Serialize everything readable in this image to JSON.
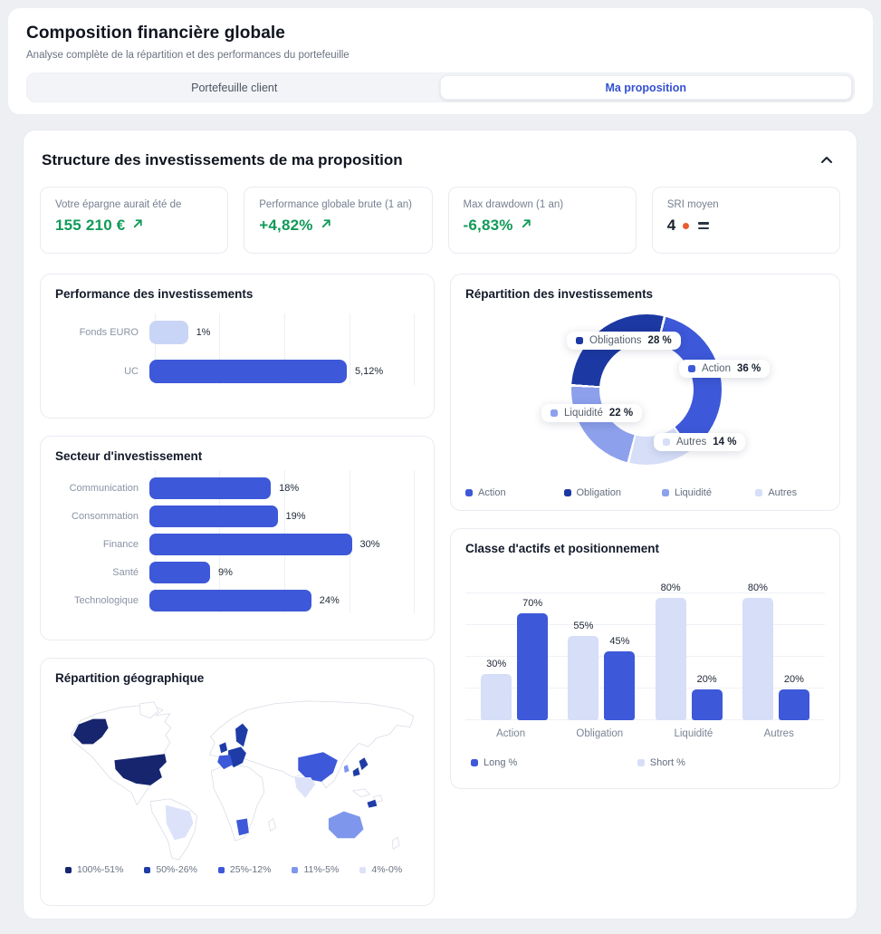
{
  "header": {
    "title": "Composition financière globale",
    "subtitle": "Analyse complète de la répartition et des performances du portefeuille"
  },
  "tabs": [
    {
      "label": "Portefeuille client",
      "active": false
    },
    {
      "label": "Ma proposition",
      "active": true
    }
  ],
  "section": {
    "title": "Structure des investissements de ma proposition"
  },
  "kpis": [
    {
      "label": "Votre épargne aurait été de",
      "value": "155 210 €",
      "trend": "up"
    },
    {
      "label": "Performance globale brute (1 an)",
      "value": "+4,82%",
      "trend": "up"
    },
    {
      "label": "Max drawdown (1 an)",
      "value": "-6,83%",
      "trend": "up"
    },
    {
      "label": "SRI moyen",
      "value": "4",
      "indicator": "dot-equals"
    }
  ],
  "palette": {
    "green": "#119A58",
    "orange": "#E85C2F",
    "action": "#3D58D8",
    "obligation": "#1C38A2",
    "liquidite": "#8CA0EC",
    "autres": "#D6DEF8",
    "map": {
      "r1": "#16256E",
      "r2": "#1F3CA6",
      "r3": "#3D58D8",
      "r4": "#7E97EC",
      "r5": "#DCE2F9"
    }
  },
  "chart_data": [
    {
      "id": "performance",
      "type": "bar",
      "orientation": "horizontal",
      "title": "Performance des investissements",
      "categories": [
        "Fonds EURO",
        "UC"
      ],
      "values": [
        1,
        5.12
      ],
      "value_labels": [
        "1%",
        "5,12%"
      ],
      "xmax": 7,
      "grid": "vertical",
      "colors": [
        "#C9D5F6",
        "#3D58D8"
      ]
    },
    {
      "id": "repartition",
      "type": "pie",
      "title": "Répartition des investissements",
      "start_angle": 15,
      "segments": [
        {
          "label": "Action",
          "value": 36,
          "display": "36 %",
          "color": "#3D58D8"
        },
        {
          "label": "Autres",
          "value": 14,
          "display": "14 %",
          "color": "#D6DEF8"
        },
        {
          "label": "Liquidité",
          "value": 22,
          "display": "22 %",
          "color": "#8CA0EC"
        },
        {
          "label": "Obligations",
          "value": 28,
          "display": "28 %",
          "color": "#1C38A2"
        }
      ],
      "legend": [
        {
          "label": "Action",
          "color": "#3D58D8"
        },
        {
          "label": "Obligation",
          "color": "#1C38A2"
        },
        {
          "label": "Liquidité",
          "color": "#8CA0EC"
        },
        {
          "label": "Autres",
          "color": "#D6DEF8"
        }
      ]
    },
    {
      "id": "secteur",
      "type": "bar",
      "orientation": "horizontal",
      "title": "Secteur d'investissement",
      "categories": [
        "Communication",
        "Consommation",
        "Finance",
        "Santé",
        "Technologique"
      ],
      "values": [
        18,
        19,
        30,
        9,
        24
      ],
      "value_labels": [
        "18%",
        "19%",
        "30%",
        "9%",
        "24%"
      ],
      "xmax": 40,
      "grid": "vertical",
      "color": "#3D58D8"
    },
    {
      "id": "classe",
      "type": "bar",
      "orientation": "vertical",
      "title": "Classe d'actifs et positionnement",
      "categories": [
        "Action",
        "Obligation",
        "Liquidité",
        "Autres"
      ],
      "ymax": 83,
      "grid": "horizontal",
      "series": [
        {
          "name": "Short %",
          "color": "#D6DEF8",
          "values": [
            30,
            55,
            80,
            80
          ],
          "value_labels": [
            "30%",
            "55%",
            "80%",
            "80%"
          ]
        },
        {
          "name": "Long %",
          "color": "#3D58D8",
          "values": [
            70,
            45,
            20,
            20
          ],
          "value_labels": [
            "70%",
            "45%",
            "20%",
            "20%"
          ]
        }
      ],
      "legend": [
        {
          "label": "Long %",
          "color": "#3D58D8"
        },
        {
          "label": "Short %",
          "color": "#D6DEF8"
        }
      ]
    },
    {
      "id": "geo",
      "type": "choropleth",
      "title": "Répartition géographique",
      "legend": [
        {
          "label": "100%-51%",
          "color": "#16256E"
        },
        {
          "label": "50%-26%",
          "color": "#1F3CA6"
        },
        {
          "label": "25%-12%",
          "color": "#3D58D8"
        },
        {
          "label": "11%-5%",
          "color": "#7E97EC"
        },
        {
          "label": "4%-0%",
          "color": "#DCE2F9"
        }
      ]
    }
  ]
}
